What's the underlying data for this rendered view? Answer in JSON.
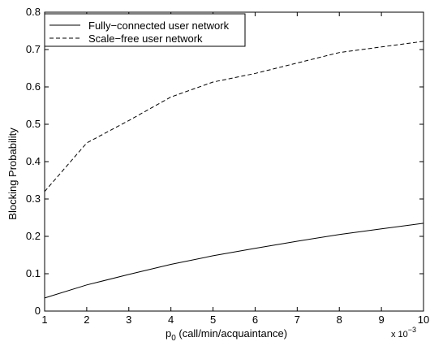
{
  "chart_data": {
    "type": "line",
    "title": "",
    "xlabel_main": "p",
    "xlabel_sub": "0",
    "xlabel_rest": " (call/min/acquaintance)",
    "ylabel": "Blocking Probability",
    "x_multiplier_base": "x 10",
    "x_multiplier_exp": "−3",
    "xlim": [
      1,
      10
    ],
    "ylim": [
      0,
      0.8
    ],
    "x_ticks": [
      1,
      2,
      3,
      4,
      5,
      6,
      7,
      8,
      9,
      10
    ],
    "x_tick_labels": [
      "1",
      "2",
      "3",
      "4",
      "5",
      "6",
      "7",
      "8",
      "9",
      "10"
    ],
    "y_ticks": [
      0,
      0.1,
      0.2,
      0.3,
      0.4,
      0.5,
      0.6,
      0.7,
      0.8
    ],
    "y_tick_labels": [
      "0",
      "0.1",
      "0.2",
      "0.3",
      "0.4",
      "0.5",
      "0.6",
      "0.7",
      "0.8"
    ],
    "grid": false,
    "legend_position": "top-left",
    "x": [
      1,
      2,
      3,
      4,
      5,
      6,
      7,
      8,
      9,
      10
    ],
    "series": [
      {
        "name": "Fully−connected user network",
        "style": "solid",
        "color": "#000000",
        "values": [
          0.035,
          0.07,
          0.098,
          0.125,
          0.148,
          0.168,
          0.187,
          0.205,
          0.22,
          0.235
        ]
      },
      {
        "name": "Scale−free user network",
        "style": "dashed",
        "color": "#000000",
        "values": [
          0.32,
          0.45,
          0.51,
          0.573,
          0.613,
          0.636,
          0.664,
          0.692,
          0.707,
          0.722
        ]
      }
    ]
  }
}
